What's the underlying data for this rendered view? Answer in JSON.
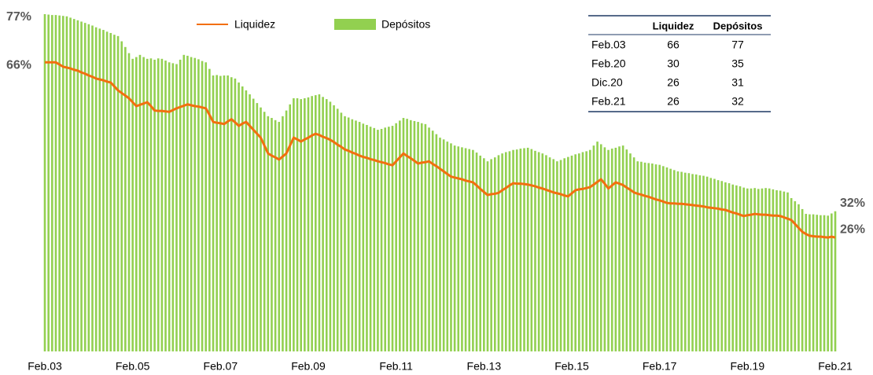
{
  "chart_data": {
    "type": "bar",
    "categories": [
      "Feb.03",
      null,
      null,
      null,
      null,
      null,
      null,
      null,
      null,
      null,
      null,
      null,
      null,
      null,
      null,
      null,
      null,
      null,
      null,
      null,
      null,
      null,
      null,
      null,
      "Feb.05",
      null,
      null,
      null,
      null,
      null,
      null,
      null,
      null,
      null,
      null,
      null,
      null,
      null,
      null,
      null,
      null,
      null,
      null,
      null,
      null,
      null,
      null,
      null,
      "Feb.07",
      null,
      null,
      null,
      null,
      null,
      null,
      null,
      null,
      null,
      null,
      null,
      null,
      null,
      null,
      null,
      null,
      null,
      null,
      null,
      null,
      null,
      null,
      null,
      "Feb.09",
      null,
      null,
      null,
      null,
      null,
      null,
      null,
      null,
      null,
      null,
      null,
      null,
      null,
      null,
      null,
      null,
      null,
      null,
      null,
      null,
      null,
      null,
      null,
      "Feb.11",
      null,
      null,
      null,
      null,
      null,
      null,
      null,
      null,
      null,
      null,
      null,
      null,
      null,
      null,
      null,
      null,
      null,
      null,
      null,
      null,
      null,
      null,
      null,
      "Feb.13",
      null,
      null,
      null,
      null,
      null,
      null,
      null,
      null,
      null,
      null,
      null,
      null,
      null,
      null,
      null,
      null,
      null,
      null,
      null,
      null,
      null,
      null,
      null,
      "Feb.15",
      null,
      null,
      null,
      null,
      null,
      null,
      null,
      null,
      null,
      null,
      null,
      null,
      null,
      null,
      null,
      null,
      null,
      null,
      null,
      null,
      null,
      null,
      null,
      "Feb.17",
      null,
      null,
      null,
      null,
      null,
      null,
      null,
      null,
      null,
      null,
      null,
      null,
      null,
      null,
      null,
      null,
      null,
      null,
      null,
      null,
      null,
      null,
      null,
      "Feb.19",
      null,
      null,
      null,
      null,
      null,
      null,
      null,
      null,
      null,
      null,
      null,
      null,
      null,
      null,
      null,
      null,
      null,
      null,
      null,
      null,
      null,
      null,
      null,
      "Feb.21"
    ],
    "series": [
      {
        "name": "Liquidez",
        "type": "line",
        "color": "#f26f0f",
        "values": [
          66,
          66,
          66,
          66,
          65.5,
          65,
          64.8,
          64.6,
          64.3,
          64.1,
          63.7,
          63.4,
          63.0,
          62.7,
          62.3,
          62.1,
          61.9,
          61.6,
          61.4,
          60.5,
          59.6,
          59.0,
          58.4,
          57.8,
          56.9,
          56,
          56.3,
          56.6,
          56.9,
          56,
          55,
          54.9,
          54.9,
          54.8,
          54.7,
          55.1,
          55.5,
          55.8,
          56.1,
          56.4,
          56.2,
          56.0,
          55.9,
          55.7,
          55.5,
          54,
          52.4,
          52.2,
          52.1,
          51.9,
          52.5,
          53,
          52.3,
          51.5,
          52,
          52.4,
          51.5,
          50.6,
          49.7,
          48.8,
          47,
          45.2,
          44.7,
          44.3,
          43.8,
          44.5,
          45.2,
          47,
          48.8,
          48.4,
          47.9,
          48.4,
          48.8,
          49.3,
          49.7,
          49.4,
          49.0,
          48.7,
          48.3,
          47.8,
          47.2,
          46.7,
          46.1,
          45.8,
          45.4,
          45.1,
          44.7,
          44.4,
          44.2,
          43.9,
          43.7,
          43.4,
          43.2,
          43.0,
          42.7,
          42.5,
          43.4,
          44.3,
          45.2,
          44.6,
          44.1,
          43.5,
          42.9,
          43.1,
          43.2,
          43.4,
          42.8,
          42.3,
          41.7,
          41.1,
          40.5,
          39.9,
          39.7,
          39.5,
          39.3,
          39.0,
          38.8,
          38.6,
          37.9,
          37.1,
          36.4,
          35.7,
          35.9,
          36.0,
          36.2,
          36.8,
          37.3,
          37.9,
          38.4,
          38.3,
          38.3,
          38.2,
          38.1,
          37.9,
          37.7,
          37.4,
          37.2,
          36.9,
          36.6,
          36.3,
          36.1,
          35.9,
          35.6,
          35.4,
          36.1,
          36.8,
          37.0,
          37.1,
          37.3,
          37.5,
          38.1,
          38.7,
          39.3,
          38.3,
          37.2,
          37.9,
          38.6,
          38.3,
          38,
          37.4,
          36.9,
          36.3,
          36.0,
          35.8,
          35.5,
          35.3,
          35,
          34.7,
          34.5,
          34.2,
          33.9,
          33.8,
          33.8,
          33.7,
          33.7,
          33.6,
          33.5,
          33.4,
          33.3,
          33.2,
          33.1,
          32.9,
          32.8,
          32.7,
          32.6,
          32.4,
          32.3,
          32.0,
          31.7,
          31.5,
          31.2,
          30.9,
          31.1,
          31.2,
          31.4,
          31.3,
          31.2,
          31.2,
          31.1,
          31.0,
          31.0,
          30.9,
          30.6,
          30.3,
          30,
          29.1,
          28.2,
          27.3,
          26.8,
          26.4,
          26.3,
          26.2,
          26.2,
          26.1,
          26,
          26.2,
          26
        ]
      },
      {
        "name": "Depósitos",
        "type": "bar",
        "color": "#92d050",
        "values": [
          77,
          76.9,
          76.8,
          76.8,
          76.7,
          76.6,
          76.5,
          76.2,
          75.9,
          75.6,
          75.3,
          75,
          74.7,
          74.4,
          74.0,
          73.7,
          73.4,
          73.0,
          72.7,
          72.3,
          72.0,
          70.8,
          69.5,
          68.1,
          66.8,
          67.2,
          67.7,
          67.2,
          66.8,
          66.9,
          66.6,
          66.9,
          66.8,
          66.4,
          66,
          65.8,
          65.6,
          66.6,
          67.7,
          67.5,
          67.2,
          67,
          66.7,
          66.3,
          66,
          64.5,
          63,
          63.1,
          62.9,
          63.0,
          63,
          62.6,
          62.3,
          61.4,
          60.5,
          59.6,
          58.7,
          57.7,
          56.7,
          55.7,
          54.7,
          53.7,
          53.3,
          52.8,
          52.4,
          53.7,
          55,
          56.4,
          57.8,
          57.8,
          57.6,
          57.8,
          58.0,
          58.3,
          58.5,
          58.7,
          58.1,
          57.6,
          57,
          56.2,
          55.4,
          54.5,
          53.7,
          53.4,
          53.0,
          52.7,
          52.4,
          52.0,
          51.7,
          51.3,
          51.0,
          50.6,
          50.8,
          51.1,
          51.3,
          51.5,
          52.1,
          52.7,
          53.3,
          53.1,
          52.8,
          52.6,
          52.4,
          52.1,
          51.9,
          51.1,
          50.4,
          49.6,
          48.8,
          48.4,
          47.9,
          47.5,
          47,
          46.8,
          46.6,
          46.4,
          46.2,
          46,
          45.4,
          44.7,
          44.1,
          43.4,
          43.9,
          44.3,
          44.8,
          45.2,
          45.5,
          45.7,
          46,
          46.1,
          46.3,
          46.4,
          46.5,
          46.2,
          45.8,
          45.5,
          45.2,
          44.8,
          44.3,
          43.9,
          43.4,
          43.7,
          44.1,
          44.4,
          44.7,
          45.0,
          45.2,
          45.5,
          45.7,
          46,
          47.0,
          47.9,
          47.3,
          46.6,
          46,
          46.3,
          46.5,
          46.8,
          47,
          46.1,
          45.2,
          44.3,
          43.4,
          43.3,
          43.1,
          43.0,
          42.9,
          42.7,
          42.6,
          42.3,
          42.0,
          41.7,
          41.4,
          41.1,
          41.0,
          40.8,
          40.7,
          40.5,
          40.4,
          40.2,
          40.1,
          39.9,
          39.6,
          39.4,
          39.1,
          38.9,
          38.6,
          38.4,
          38.1,
          37.9,
          37.7,
          37.4,
          37.2,
          37.2,
          37.3,
          37.1,
          37.2,
          37.3,
          37.2,
          37.0,
          36.8,
          36.7,
          36.5,
          36.3,
          35,
          34.3,
          33.6,
          32.5,
          31.4,
          31.3,
          31.3,
          31.2,
          31.1,
          31.1,
          31,
          31.5,
          32
        ]
      }
    ],
    "ylim": [
      0,
      77
    ],
    "annotations": [
      {
        "label": "77%",
        "value": 77
      },
      {
        "label": "66%",
        "value": 66
      },
      {
        "label": "32%",
        "value": 32
      },
      {
        "label": "26%",
        "value": 26
      }
    ],
    "table": {
      "columns": [
        "Liquidez",
        "Depósitos"
      ],
      "rows": [
        [
          "Feb.03",
          66,
          77
        ],
        [
          "Feb.20",
          30,
          35
        ],
        [
          "Dic.20",
          26,
          31
        ],
        [
          "Feb.21",
          26,
          32
        ]
      ]
    }
  }
}
